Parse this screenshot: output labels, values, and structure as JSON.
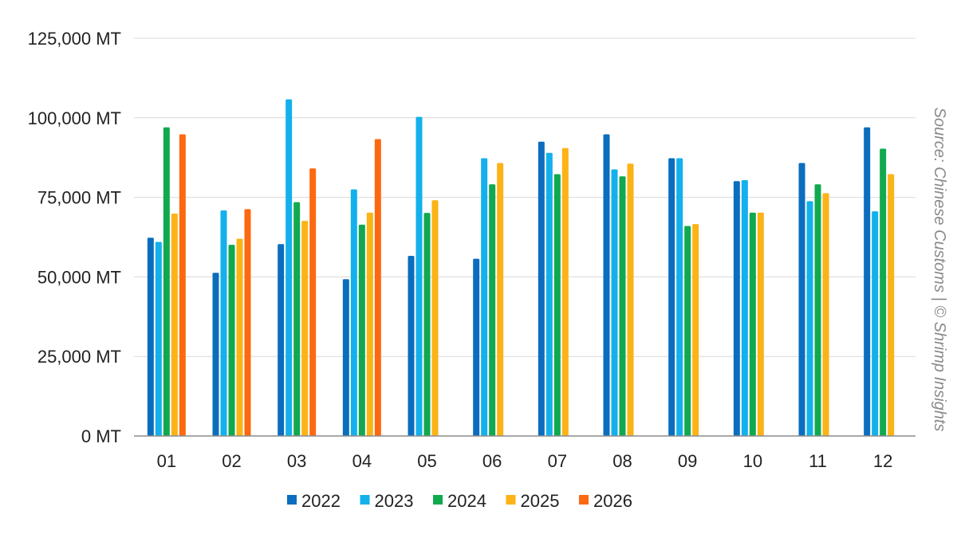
{
  "chart_data": {
    "type": "bar",
    "title": "",
    "xlabel": "",
    "ylabel": "",
    "ylim": [
      0,
      125000
    ],
    "y_ticks": [
      0,
      25000,
      50000,
      75000,
      100000,
      125000
    ],
    "y_tick_labels": [
      "0 MT",
      "25,000 MT",
      "50,000 MT",
      "75,000 MT",
      "100,000 MT",
      "125,000 MT"
    ],
    "grid": true,
    "legend_position": "bottom",
    "categories": [
      "01",
      "02",
      "03",
      "04",
      "05",
      "06",
      "07",
      "08",
      "09",
      "10",
      "11",
      "12"
    ],
    "series": [
      {
        "name": "2022",
        "color": "#0b6dbd",
        "values": [
          62300,
          51300,
          60300,
          49300,
          56600,
          55700,
          92500,
          94800,
          87300,
          80100,
          85800,
          97000
        ]
      },
      {
        "name": "2023",
        "color": "#13b0ec",
        "values": [
          61000,
          70900,
          105800,
          77500,
          100300,
          87300,
          89000,
          83800,
          87300,
          80400,
          73800,
          70600
        ]
      },
      {
        "name": "2024",
        "color": "#10a94f",
        "values": [
          97000,
          60100,
          73500,
          66400,
          70100,
          79100,
          82300,
          81600,
          66000,
          70200,
          79100,
          90300
        ]
      },
      {
        "name": "2025",
        "color": "#fbb316",
        "values": [
          69900,
          62000,
          67600,
          70200,
          74100,
          85800,
          90500,
          85600,
          66600,
          70200,
          76300,
          82300
        ]
      },
      {
        "name": "2026",
        "color": "#fd6910",
        "values": [
          94800,
          71300,
          84100,
          93300,
          null,
          null,
          null,
          null,
          null,
          null,
          null,
          null
        ]
      }
    ],
    "annotations": [
      "Source: Chinese Customs | © Shrimp Insights"
    ]
  }
}
